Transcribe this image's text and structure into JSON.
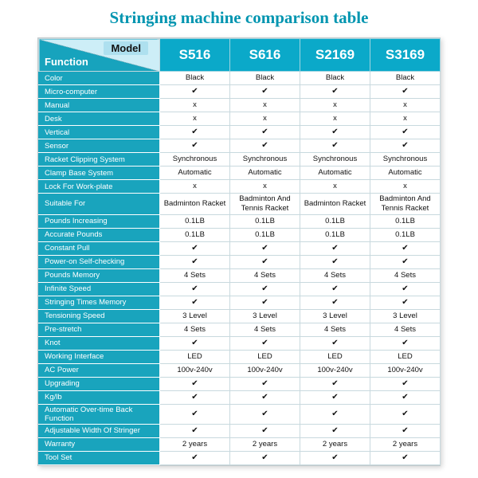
{
  "title": "Stringing machine comparison table",
  "table": {
    "corner": {
      "top": "Model",
      "bottom": "Function"
    },
    "models": [
      "S516",
      "S616",
      "S2169",
      "S3169"
    ],
    "rows": [
      {
        "label": "Color",
        "values": [
          "Black",
          "Black",
          "Black",
          "Black"
        ]
      },
      {
        "label": "Micro-computer",
        "values": [
          "✔",
          "✔",
          "✔",
          "✔"
        ]
      },
      {
        "label": "Manual",
        "values": [
          "x",
          "x",
          "x",
          "x"
        ]
      },
      {
        "label": "Desk",
        "values": [
          "x",
          "x",
          "x",
          "x"
        ]
      },
      {
        "label": "Vertical",
        "values": [
          "✔",
          "✔",
          "✔",
          "✔"
        ]
      },
      {
        "label": "Sensor",
        "values": [
          "✔",
          "✔",
          "✔",
          "✔"
        ]
      },
      {
        "label": "Racket Clipping System",
        "values": [
          "Synchronous",
          "Synchronous",
          "Synchronous",
          "Synchronous"
        ]
      },
      {
        "label": "Clamp Base System",
        "values": [
          "Automatic",
          "Automatic",
          "Automatic",
          "Automatic"
        ]
      },
      {
        "label": "Lock For Work-plate",
        "values": [
          "x",
          "x",
          "x",
          "x"
        ]
      },
      {
        "label": "Suitable For",
        "values": [
          "Badminton Racket",
          "Badminton And Tennis Racket",
          "Badminton Racket",
          "Badminton And Tennis Racket"
        ]
      },
      {
        "label": "Pounds Increasing",
        "values": [
          "0.1LB",
          "0.1LB",
          "0.1LB",
          "0.1LB"
        ]
      },
      {
        "label": "Accurate Pounds",
        "values": [
          "0.1LB",
          "0.1LB",
          "0.1LB",
          "0.1LB"
        ]
      },
      {
        "label": "Constant Pull",
        "values": [
          "✔",
          "✔",
          "✔",
          "✔"
        ]
      },
      {
        "label": "Power-on Self-checking",
        "values": [
          "✔",
          "✔",
          "✔",
          "✔"
        ]
      },
      {
        "label": "Pounds Memory",
        "values": [
          "4 Sets",
          "4 Sets",
          "4 Sets",
          "4 Sets"
        ]
      },
      {
        "label": "Infinite Speed",
        "values": [
          "✔",
          "✔",
          "✔",
          "✔"
        ]
      },
      {
        "label": "Stringing Times Memory",
        "values": [
          "✔",
          "✔",
          "✔",
          "✔"
        ]
      },
      {
        "label": "Tensioning Speed",
        "values": [
          "3 Level",
          "3 Level",
          "3 Level",
          "3 Level"
        ]
      },
      {
        "label": "Pre-stretch",
        "values": [
          "4 Sets",
          "4 Sets",
          "4 Sets",
          "4 Sets"
        ]
      },
      {
        "label": "Knot",
        "values": [
          "✔",
          "✔",
          "✔",
          "✔"
        ]
      },
      {
        "label": "Working Interface",
        "values": [
          "LED",
          "LED",
          "LED",
          "LED"
        ]
      },
      {
        "label": "AC Power",
        "values": [
          "100v-240v",
          "100v-240v",
          "100v-240v",
          "100v-240v"
        ]
      },
      {
        "label": "Upgrading",
        "values": [
          "✔",
          "✔",
          "✔",
          "✔"
        ]
      },
      {
        "label": "Kg/lb",
        "values": [
          "✔",
          "✔",
          "✔",
          "✔"
        ]
      },
      {
        "label": "Automatic Over-time Back Function",
        "values": [
          "✔",
          "✔",
          "✔",
          "✔"
        ]
      },
      {
        "label": "Adjustable Width Of Stringer",
        "values": [
          "✔",
          "✔",
          "✔",
          "✔"
        ]
      },
      {
        "label": "Warranty",
        "values": [
          "2 years",
          "2 years",
          "2 years",
          "2 years"
        ]
      },
      {
        "label": "Tool Set",
        "values": [
          "✔",
          "✔",
          "✔",
          "✔"
        ]
      }
    ]
  },
  "colors": {
    "title": "#0095b0",
    "header_teal": "#0ba9c9",
    "label_teal": "#19a4bd",
    "corner_light": "#cdeef7"
  }
}
